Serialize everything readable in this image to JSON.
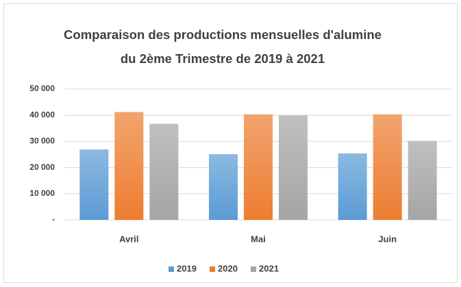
{
  "chart_data": {
    "type": "bar",
    "title": [
      "Comparaison  des productions  mensuelles d'alumine",
      "du 2ème Trimestre de 2019 à 2021"
    ],
    "categories": [
      "Avril",
      "Mai",
      "Juin"
    ],
    "series": [
      {
        "name": "2019",
        "color": "#5b9bd5",
        "values": [
          26900,
          25100,
          25400
        ]
      },
      {
        "name": "2020",
        "color": "#ed7d31",
        "values": [
          41200,
          40300,
          40300
        ]
      },
      {
        "name": "2021",
        "color": "#a5a5a5",
        "values": [
          36700,
          40000,
          30200
        ]
      }
    ],
    "ylim": [
      0,
      50000
    ],
    "yticks": [
      {
        "value": 0,
        "label": "-"
      },
      {
        "value": 10000,
        "label": "10 000"
      },
      {
        "value": 20000,
        "label": "20 000"
      },
      {
        "value": 30000,
        "label": "30 000"
      },
      {
        "value": 40000,
        "label": "40 000"
      },
      {
        "value": 50000,
        "label": "50 000"
      }
    ],
    "grid": true,
    "legend": "bottom"
  }
}
